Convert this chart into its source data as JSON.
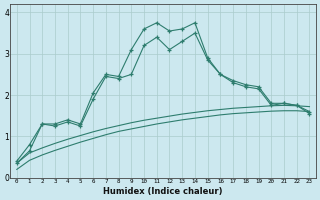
{
  "x": [
    0,
    1,
    2,
    3,
    4,
    5,
    6,
    7,
    8,
    9,
    10,
    11,
    12,
    13,
    14,
    15,
    16,
    17,
    18,
    19,
    20,
    21,
    22,
    23
  ],
  "line1": [
    0.4,
    0.8,
    1.3,
    1.3,
    1.4,
    1.3,
    2.05,
    2.5,
    2.45,
    3.1,
    3.6,
    3.75,
    3.55,
    3.6,
    3.75,
    2.9,
    2.5,
    2.35,
    2.25,
    2.2,
    1.8,
    1.8,
    1.75,
    1.6
  ],
  "line2": [
    0.35,
    0.65,
    1.3,
    1.25,
    1.35,
    1.25,
    1.9,
    2.45,
    2.4,
    2.5,
    3.2,
    3.4,
    3.1,
    3.3,
    3.5,
    2.85,
    2.5,
    2.3,
    2.2,
    2.15,
    1.75,
    1.8,
    1.75,
    1.55
  ],
  "smooth1": [
    0.35,
    0.6,
    0.72,
    0.83,
    0.93,
    1.02,
    1.11,
    1.19,
    1.26,
    1.33,
    1.39,
    1.44,
    1.49,
    1.54,
    1.58,
    1.62,
    1.65,
    1.68,
    1.7,
    1.72,
    1.74,
    1.75,
    1.74,
    1.72
  ],
  "smooth2": [
    0.2,
    0.42,
    0.55,
    0.66,
    0.76,
    0.86,
    0.95,
    1.04,
    1.12,
    1.18,
    1.24,
    1.3,
    1.35,
    1.4,
    1.44,
    1.48,
    1.52,
    1.55,
    1.57,
    1.59,
    1.61,
    1.62,
    1.62,
    1.6
  ],
  "line_color": "#2e7d6e",
  "bg_color": "#cce8ef",
  "grid_color": "#aacccc",
  "xlabel": "Humidex (Indice chaleur)",
  "ylim": [
    0,
    4.2
  ],
  "xlim": [
    -0.5,
    23.5
  ],
  "yticks": [
    0,
    1,
    2,
    3,
    4
  ],
  "xtick_labels": [
    "0",
    "1",
    "2",
    "3",
    "4",
    "5",
    "6",
    "7",
    "8",
    "9",
    "10",
    "11",
    "12",
    "13",
    "14",
    "15",
    "16",
    "17",
    "18",
    "19",
    "20",
    "21",
    "22",
    "23"
  ]
}
